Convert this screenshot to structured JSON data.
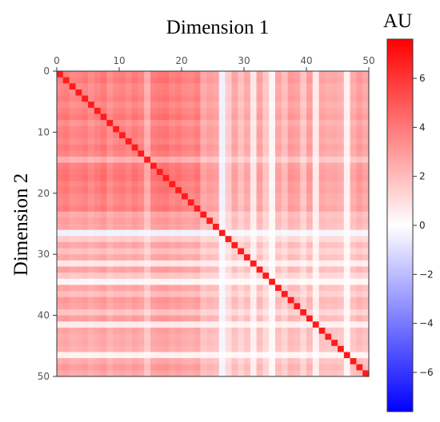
{
  "chart_data": {
    "type": "heatmap",
    "title": "",
    "xlabel": "Dimension 1",
    "ylabel": "Dimension 2",
    "xaxis_position": "top",
    "x_ticks": [
      0,
      10,
      20,
      30,
      40,
      50
    ],
    "y_ticks": [
      0,
      10,
      20,
      30,
      40,
      50
    ],
    "xlim": [
      0,
      50
    ],
    "ylim": [
      50,
      0
    ],
    "grid": false,
    "size": 50,
    "colormap": "bwr",
    "colors": {
      "low": "#0000ff",
      "mid": "#ffffff",
      "high": "#ff0000"
    },
    "colorbar": {
      "label": "AU",
      "position": "right",
      "range": [
        -7.6,
        7.6
      ],
      "ticks": [
        6,
        4,
        2,
        0,
        -2,
        -4,
        -6
      ],
      "tick_labels": [
        "6",
        "4",
        "2",
        "0",
        "−2",
        "−4",
        "−6"
      ]
    },
    "diagonal_value": 6.8,
    "row_col_base": [
      3.6,
      3.8,
      3.4,
      3.5,
      3.7,
      3.3,
      3.6,
      3.9,
      3.2,
      3.6,
      3.7,
      3.4,
      3.8,
      3.5,
      2.3,
      3.7,
      3.9,
      4.0,
      3.6,
      3.8,
      3.5,
      3.4,
      3.7,
      2.5,
      2.8,
      2.6,
      -0.4,
      1.5,
      2.6,
      1.8,
      2.5,
      0.7,
      2.7,
      1.6,
      0.3,
      2.6,
      1.9,
      2.9,
      2.7,
      1.7,
      2.8,
      0.6,
      2.6,
      2.4,
      2.5,
      2.3,
      0.4,
      2.4,
      2.9,
      2.5
    ],
    "cell_value_rule": "value[i][j] = diagonal_value if i == j else row_col_base[i] * row_col_base[j] / 3.5"
  }
}
